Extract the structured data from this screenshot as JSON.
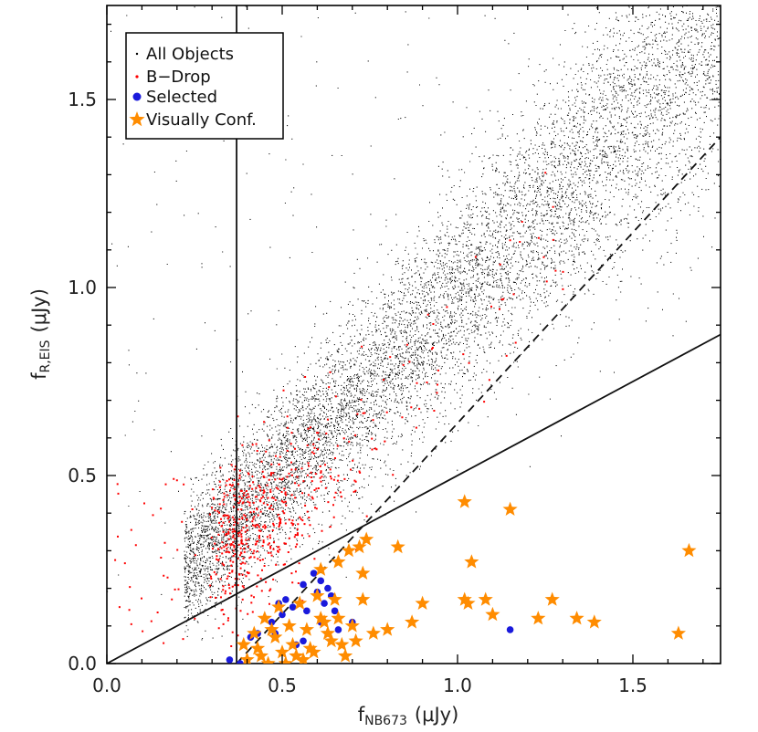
{
  "chart_data": {
    "type": "scatter",
    "title": "",
    "xlabel": "f",
    "xlabel_sub": "NB673",
    "xlabel_unit": "(μJy)",
    "ylabel": "f",
    "ylabel_sub": "R,EIS",
    "ylabel_unit": "(μJy)",
    "xlim": [
      0.0,
      1.75
    ],
    "ylim": [
      0.0,
      1.75
    ],
    "xticks": [
      0.0,
      0.5,
      1.0,
      1.5
    ],
    "yticks": [
      0.0,
      0.5,
      1.0,
      1.5
    ],
    "xtick_labels": [
      "0.0",
      "0.5",
      "1.0",
      "1.5"
    ],
    "ytick_labels": [
      "0.0",
      "0.5",
      "1.0",
      "1.5"
    ],
    "legend_position": "top-left",
    "legend": [
      {
        "label": "All Objects",
        "marker": "dot",
        "color": "#000000"
      },
      {
        "label": "B−Drop",
        "marker": "dot",
        "color": "#ff0000"
      },
      {
        "label": "Selected",
        "marker": "circle",
        "color": "#1a1adc"
      },
      {
        "label": "Visually Conf.",
        "marker": "star",
        "color": "#ff8c00"
      }
    ],
    "lines": [
      {
        "name": "vertical-cut",
        "style": "solid",
        "x": [
          0.37,
          0.37
        ],
        "y": [
          0.0,
          1.75
        ]
      },
      {
        "name": "solid-cut",
        "style": "solid",
        "x": [
          0.0,
          1.75
        ],
        "y": [
          0.0,
          0.875
        ]
      },
      {
        "name": "dashed-cut",
        "style": "dashed",
        "x": [
          0.37,
          1.75
        ],
        "y": [
          0.0,
          1.4
        ]
      }
    ],
    "series": [
      {
        "name": "All Objects",
        "color": "#000000",
        "marker": "dot",
        "approximate_count": 9000,
        "distribution": "dense band along y ≈ 0.95·x, spread ±0.25, from x≈0.25 to x≈1.75"
      },
      {
        "name": "Visually Conf.",
        "color": "#ff8c00",
        "marker": "star",
        "x": [
          1.02,
          1.15,
          0.83,
          1.66,
          1.04,
          0.74,
          0.72,
          0.69,
          0.66,
          0.61,
          0.73,
          1.02,
          1.03,
          1.08,
          1.27,
          0.65,
          0.9,
          0.73,
          1.1,
          1.23,
          1.34,
          1.39,
          0.87,
          1.63,
          0.8,
          0.76,
          0.7,
          0.62,
          0.66,
          0.45,
          0.49,
          0.55,
          0.6,
          0.42,
          0.39,
          0.47,
          0.52,
          0.57,
          0.63,
          0.67,
          0.71,
          0.44,
          0.5,
          0.58,
          0.4,
          0.46,
          0.54,
          0.59,
          0.64,
          0.68,
          0.48,
          0.53,
          0.43,
          0.51,
          0.56,
          0.61
        ],
        "y": [
          0.43,
          0.41,
          0.31,
          0.3,
          0.27,
          0.33,
          0.31,
          0.3,
          0.27,
          0.25,
          0.24,
          0.17,
          0.16,
          0.17,
          0.17,
          0.17,
          0.16,
          0.17,
          0.13,
          0.12,
          0.12,
          0.11,
          0.11,
          0.08,
          0.09,
          0.08,
          0.1,
          0.11,
          0.12,
          0.12,
          0.15,
          0.16,
          0.18,
          0.08,
          0.05,
          0.09,
          0.1,
          0.09,
          0.08,
          0.05,
          0.06,
          0.02,
          0.03,
          0.04,
          0.01,
          0.0,
          0.02,
          0.03,
          0.06,
          0.02,
          0.07,
          0.05,
          0.04,
          0.0,
          0.01,
          0.12
        ]
      },
      {
        "name": "Selected",
        "color": "#1a1adc",
        "marker": "circle",
        "x": [
          0.59,
          0.61,
          0.63,
          0.64,
          0.56,
          0.6,
          0.62,
          0.51,
          0.53,
          0.57,
          0.5,
          0.49,
          0.65,
          0.7,
          0.66,
          0.47,
          0.43,
          0.41,
          0.56,
          0.35,
          0.38,
          0.61,
          1.15,
          0.54,
          0.48
        ],
        "y": [
          0.24,
          0.22,
          0.2,
          0.18,
          0.21,
          0.19,
          0.16,
          0.17,
          0.15,
          0.14,
          0.13,
          0.16,
          0.14,
          0.11,
          0.09,
          0.11,
          0.08,
          0.07,
          0.06,
          0.01,
          0.0,
          0.11,
          0.09,
          0.05,
          0.08
        ]
      },
      {
        "name": "B−Drop",
        "color": "#ff0000",
        "marker": "dot",
        "approximate_count": 600,
        "distribution": "concentrated near x≈0.3–0.6, y≈0.15–0.6, with a tail up to x≈1.3, y≈1.1 and scattered points near x≈0.0–0.2"
      }
    ]
  }
}
